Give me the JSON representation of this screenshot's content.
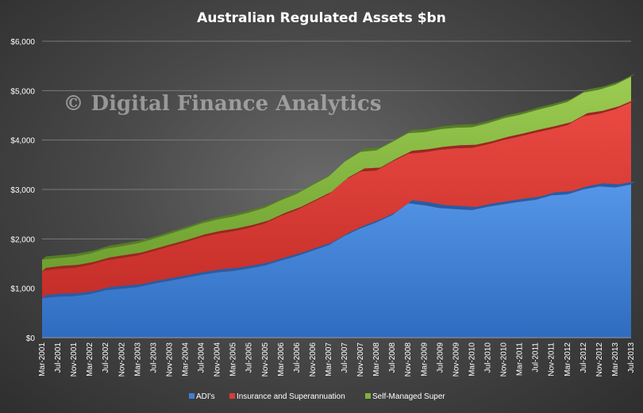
{
  "chart_data": {
    "type": "area",
    "stacked": true,
    "title": "Australian  Regulated  Assets $bn",
    "watermark": "© Digital Finance Analytics",
    "y_ticks": [
      "$0",
      "$1,000",
      "$2,000",
      "$3,000",
      "$4,000",
      "$5,000",
      "$6,000"
    ],
    "ylim": [
      0,
      6000
    ],
    "grid": true,
    "legend_position": "bottom",
    "x_labels": [
      "Mar-2001",
      "Jul-2001",
      "Nov-2001",
      "Mar-2002",
      "Jul-2002",
      "Nov-2002",
      "Mar-2003",
      "Jul-2003",
      "Nov-2003",
      "Mar-2004",
      "Jul-2004",
      "Nov-2004",
      "Mar-2005",
      "Jul-2005",
      "Nov-2005",
      "Mar-2006",
      "Jul-2006",
      "Nov-2006",
      "Mar-2007",
      "Jul-2007",
      "Nov-2007",
      "Mar-2008",
      "Jul-2008",
      "Nov-2008",
      "Mar-2009",
      "Jul-2009",
      "Nov-2009",
      "Mar-2010",
      "Jul-2010",
      "Nov-2010",
      "Mar-2011",
      "Jul-2011",
      "Nov-2011",
      "Mar-2012",
      "Jul-2012",
      "Nov-2012",
      "Mar-2013",
      "Jul-2013"
    ],
    "series": [
      {
        "name": "ADI's",
        "color": "#3f7fd4",
        "values": [
          800,
          830,
          840,
          880,
          960,
          990,
          1020,
          1090,
          1150,
          1210,
          1270,
          1320,
          1350,
          1400,
          1460,
          1560,
          1650,
          1760,
          1870,
          2060,
          2210,
          2330,
          2480,
          2720,
          2680,
          2620,
          2600,
          2580,
          2650,
          2700,
          2750,
          2790,
          2880,
          2900,
          3000,
          3060,
          3040,
          3100
        ]
      },
      {
        "name": "Insurance and Superannuation",
        "color": "#d63c36",
        "values": [
          550,
          560,
          570,
          590,
          600,
          620,
          640,
          660,
          690,
          720,
          760,
          780,
          800,
          820,
          850,
          900,
          930,
          980,
          1030,
          1120,
          1150,
          1050,
          1080,
          1000,
          1070,
          1180,
          1230,
          1260,
          1260,
          1300,
          1320,
          1360,
          1340,
          1400,
          1480,
          1470,
          1580,
          1660
        ]
      },
      {
        "name": "Self-Managed Super",
        "color": "#7fb23a",
        "values": [
          230,
          220,
          230,
          230,
          240,
          240,
          250,
          250,
          260,
          270,
          280,
          290,
          300,
          310,
          320,
          320,
          330,
          350,
          360,
          380,
          400,
          410,
          400,
          420,
          410,
          420,
          420,
          420,
          430,
          440,
          440,
          450,
          460,
          470,
          480,
          490,
          500,
          520
        ]
      }
    ]
  }
}
